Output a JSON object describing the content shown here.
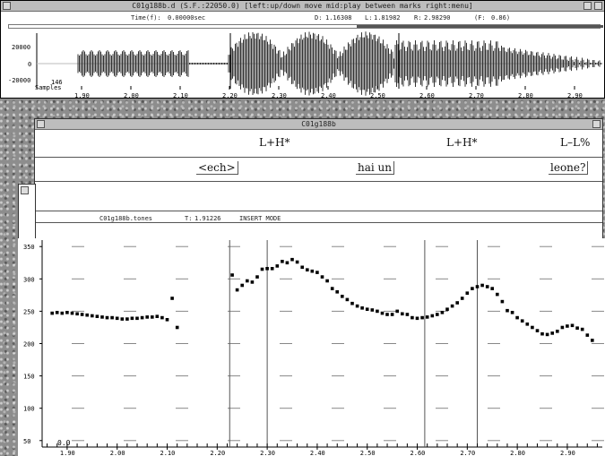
{
  "waveform_window": {
    "title": "C01g188b.d (S.F.:22050.0) [left:up/down move  mid:play between marks  right:menu]",
    "time_label": "Time(f):",
    "time_value": "0.00000sec",
    "d_label": "D:",
    "d_value": "1.16308",
    "l_label": "L:",
    "l_value": "1.81982",
    "r_label": "R:",
    "r_value": "2.98290",
    "f_label": "(F:",
    "f_value": "0.86)",
    "y_ticks": [
      "20000",
      "0",
      "-20000"
    ],
    "samples_label": "Samples",
    "samples_value": "146",
    "x_ticks": [
      "1.90",
      "2.00",
      "2.10",
      "2.20",
      "2.30",
      "2.40",
      "2.50",
      "2.60",
      "2.70",
      "2.80",
      "2.90"
    ]
  },
  "label_window": {
    "title": "C01g188b",
    "tones": [
      "L+H*",
      "L+H*",
      "L–L%"
    ],
    "words": [
      "<ech>",
      "hai un",
      "leone?"
    ],
    "status_file": "C01g188b.tones",
    "status_t_label": "T:",
    "status_t_value": "1.91226",
    "status_mode": "INSERT MODE"
  },
  "pitch_window": {
    "y_ticks": [
      "350",
      "300",
      "250",
      "200",
      "150",
      "100",
      "50"
    ],
    "x_ticks": [
      "1.90",
      "2.00",
      "2.10",
      "2.20",
      "2.30",
      "2.40",
      "2.50",
      "2.60",
      "2.70",
      "2.80",
      "2.90"
    ],
    "origin_label": "0.0"
  },
  "chart_data": {
    "type": "scatter",
    "title": "",
    "xlabel": "",
    "ylabel": "",
    "xlim": [
      1.85,
      2.97
    ],
    "ylim": [
      40,
      360
    ],
    "x": [
      1.87,
      1.88,
      1.89,
      1.9,
      1.91,
      1.92,
      1.93,
      1.94,
      1.95,
      1.96,
      1.97,
      1.98,
      1.99,
      2.0,
      2.01,
      2.02,
      2.03,
      2.04,
      2.05,
      2.06,
      2.07,
      2.08,
      2.09,
      2.1,
      2.11,
      2.12,
      2.23,
      2.24,
      2.25,
      2.26,
      2.27,
      2.28,
      2.29,
      2.3,
      2.31,
      2.32,
      2.33,
      2.34,
      2.35,
      2.36,
      2.37,
      2.38,
      2.39,
      2.4,
      2.41,
      2.42,
      2.43,
      2.44,
      2.45,
      2.46,
      2.47,
      2.48,
      2.49,
      2.5,
      2.51,
      2.52,
      2.53,
      2.54,
      2.55,
      2.56,
      2.57,
      2.58,
      2.59,
      2.6,
      2.61,
      2.62,
      2.63,
      2.64,
      2.65,
      2.66,
      2.67,
      2.68,
      2.69,
      2.7,
      2.71,
      2.72,
      2.73,
      2.74,
      2.75,
      2.76,
      2.77,
      2.78,
      2.79,
      2.8,
      2.81,
      2.82,
      2.83,
      2.84,
      2.85,
      2.86,
      2.87,
      2.88,
      2.89,
      2.9,
      2.91,
      2.92,
      2.93,
      2.94,
      2.95
    ],
    "values": [
      247,
      248,
      247,
      248,
      247,
      246,
      245,
      244,
      243,
      242,
      241,
      240,
      240,
      239,
      238,
      238,
      239,
      239,
      240,
      241,
      241,
      242,
      240,
      237,
      270,
      225,
      306,
      283,
      290,
      297,
      295,
      303,
      315,
      316,
      316,
      320,
      327,
      325,
      330,
      326,
      318,
      314,
      312,
      310,
      303,
      297,
      285,
      280,
      273,
      268,
      262,
      258,
      255,
      253,
      252,
      250,
      247,
      245,
      245,
      250,
      246,
      245,
      240,
      239,
      240,
      241,
      243,
      245,
      248,
      253,
      258,
      263,
      270,
      278,
      285,
      288,
      290,
      288,
      285,
      276,
      265,
      251,
      248,
      240,
      235,
      230,
      225,
      220,
      215,
      214,
      216,
      219,
      225,
      227,
      228,
      224,
      222,
      213,
      205
    ],
    "marker_color": "#000000",
    "vertical_marks": [
      2.225,
      2.3,
      2.615,
      2.72
    ]
  }
}
